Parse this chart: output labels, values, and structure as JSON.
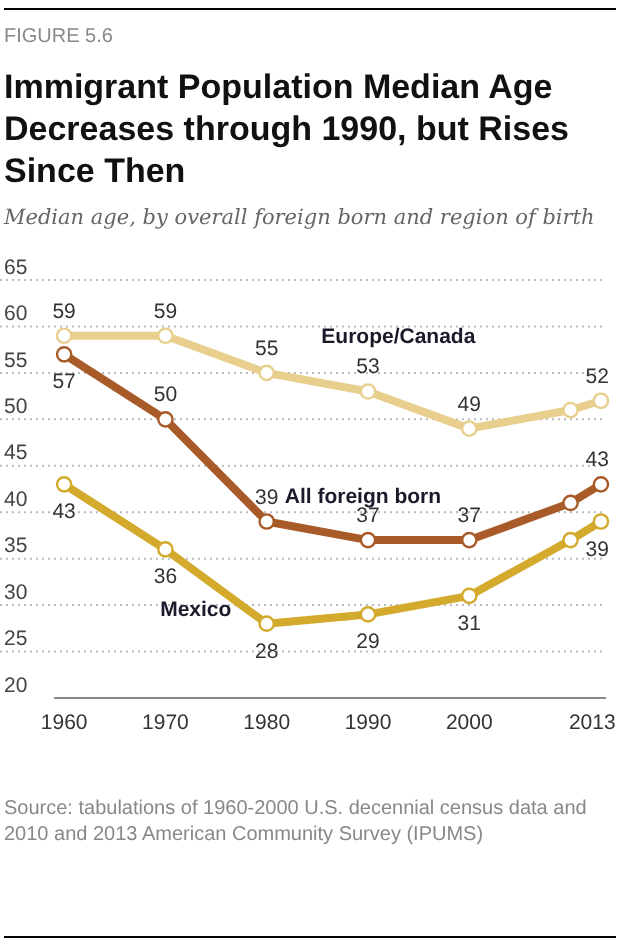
{
  "chart_data": {
    "type": "line",
    "title": "Immigrant Population Median Age Decreases through 1990, but Rises Since Then",
    "subtitle": "Median age, by overall foreign born and region of birth",
    "annotations": [
      "FIGURE 5.6",
      "Source: tabulations of 1960-2000 U.S. decennial census data and 2010 and 2013 American Community Survey (IPUMS)"
    ],
    "x": [
      1960,
      1970,
      1980,
      1990,
      2000,
      2010,
      2013
    ],
    "series": [
      {
        "name": "Europe/Canada",
        "color": "#e8cf8e",
        "values": [
          59,
          59,
          55,
          53,
          49,
          51,
          52
        ],
        "value_labels": [
          "59",
          "59",
          "55",
          "53",
          "49",
          null,
          "52"
        ]
      },
      {
        "name": "All foreign born",
        "color": "#a85b28",
        "values": [
          57,
          50,
          39,
          37,
          37,
          41,
          43
        ],
        "value_labels": [
          "57",
          "50",
          "39",
          "37",
          "37",
          null,
          "43"
        ]
      },
      {
        "name": "Mexico",
        "color": "#d4aa2c",
        "values": [
          43,
          36,
          28,
          29,
          31,
          37,
          39
        ],
        "value_labels": [
          "43",
          "36",
          "28",
          "29",
          "31",
          null,
          "39"
        ]
      }
    ],
    "xlim": [
      1959,
      2013.5
    ],
    "xticks": [
      1960,
      1970,
      1980,
      1990,
      2000,
      2013
    ],
    "ylim": [
      20,
      65
    ],
    "yticks": [
      20,
      25,
      30,
      35,
      40,
      45,
      50,
      55,
      60,
      65
    ],
    "grid": "y",
    "marker": "circle",
    "line_style": "solid"
  }
}
